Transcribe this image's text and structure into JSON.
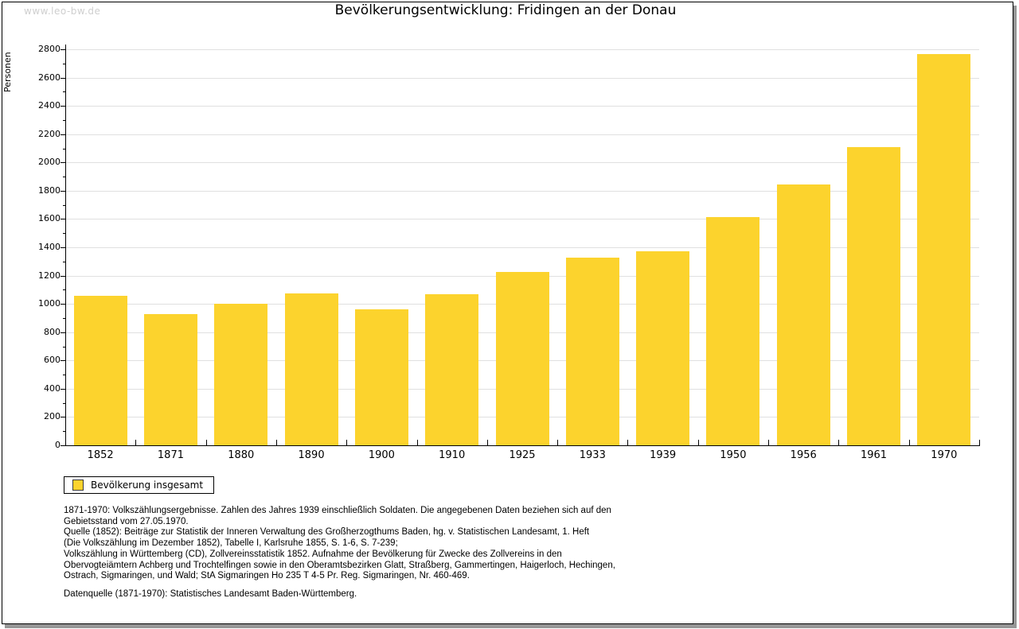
{
  "page": {
    "watermark": "www.leo-bw.de",
    "title": "Bevölkerungsentwicklung: Fridingen an der Donau"
  },
  "chart_data": {
    "type": "bar",
    "title": "Bevölkerungsentwicklung: Fridingen an der Donau",
    "xlabel": "",
    "ylabel": "Personen",
    "categories": [
      "1852",
      "1871",
      "1880",
      "1890",
      "1900",
      "1910",
      "1925",
      "1933",
      "1939",
      "1950",
      "1956",
      "1961",
      "1970"
    ],
    "values": [
      1056,
      930,
      999,
      1074,
      962,
      1067,
      1223,
      1327,
      1372,
      1611,
      1845,
      2106,
      2766
    ],
    "series_name": "Bevölkerung insgesamt",
    "ylim": [
      0,
      2800
    ],
    "ytick_step": 200,
    "yminor_step": 100,
    "grid": "horizontal",
    "legend_position": "bottom-left",
    "bar_color": "#FCD32D",
    "grid_color": "#e0e0e0",
    "axis_color": "#000000"
  },
  "legend": {
    "label": "Bevölkerung insgesamt",
    "swatch_color": "#FCD32D"
  },
  "footnotes": {
    "lines": [
      "1871-1970: Volkszählungsergebnisse. Zahlen des Jahres 1939 einschließlich Soldaten. Die angegebenen Daten beziehen sich auf den",
      "Gebietsstand vom 27.05.1970.",
      "Quelle (1852): Beiträge zur Statistik der Inneren Verwaltung des Großherzogthums Baden, hg. v. Statistischen Landesamt, 1. Heft",
      "(Die Volkszählung im Dezember 1852), Tabelle I, Karlsruhe 1855, S. 1-6, S. 7-239;",
      "Volkszählung in Württemberg (CD), Zollvereinsstatistik 1852. Aufnahme der Bevölkerung für Zwecke des Zollvereins in den",
      "Obervogteiämtern Achberg und Trochtelfingen sowie in den Oberamtsbezirken Glatt, Straßberg, Gammertingen, Haigerloch, Hechingen,",
      "Ostrach, Sigmaringen, und Wald; StA Sigmaringen Ho 235 T 4-5 Pr. Reg. Sigmaringen, Nr. 460-469."
    ],
    "source_line": "Datenquelle (1871-1970): Statistisches Landesamt Baden-Württemberg."
  }
}
